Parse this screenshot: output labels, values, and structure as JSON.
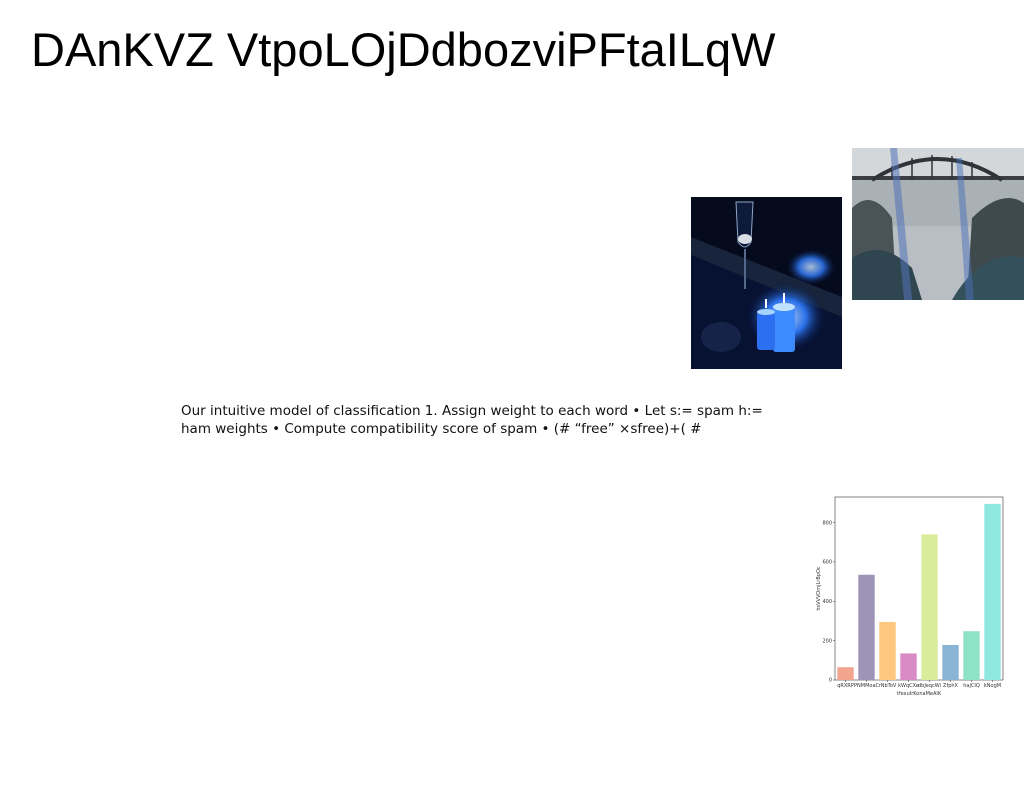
{
  "slide": {
    "title": "DAnKVZ VtpoLOjDdbozviPFtaILqW",
    "body_text": "Our intuitive model of classification 1. Assign weight to each word • Let s:= spam h:= ham weights • Compute compatibility score of spam • (# “free” ×sfree)+( #"
  },
  "images": {
    "candles_photo": "blue candles and wine glass photo",
    "bridge_photo": "arched bridge over coastal cliffs photo"
  },
  "chart_data": {
    "type": "bar",
    "categories": [
      "qRXRP",
      "PNMMoaC",
      "rNbToV",
      "kWqCXe",
      "dbJeqcWi",
      "ZfphX",
      "hajCIQ",
      "kNogM"
    ],
    "values": [
      65,
      535,
      295,
      135,
      740,
      178,
      248,
      895
    ],
    "colors": [
      "#f2a58e",
      "#9e94b8",
      "#fdc87d",
      "#d88ac4",
      "#d9ec9c",
      "#8ab4d4",
      "#8ee3c6",
      "#8ee8e0"
    ],
    "xlabel": "tfexuIrKonaMeAlK",
    "ylabel": "hsVVVOmjLrBpOc",
    "ylim": [
      0,
      930
    ],
    "yticks": [
      0,
      200,
      400,
      600,
      800
    ]
  }
}
